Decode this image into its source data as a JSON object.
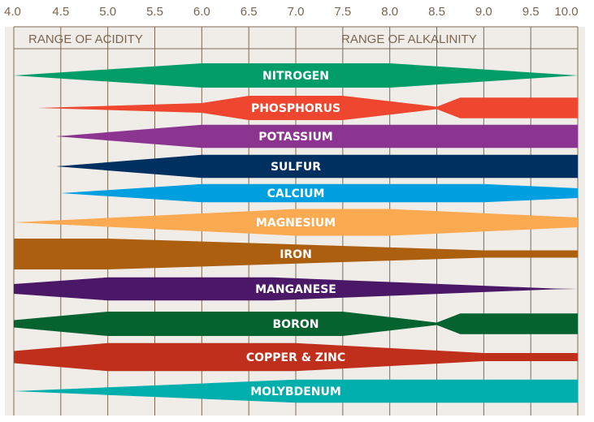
{
  "chart_data": {
    "type": "area",
    "x_ticks": [
      "4.0",
      "4.5",
      "5.0",
      "5.5",
      "6.0",
      "6.5",
      "7.0",
      "7.5",
      "8.0",
      "8.5",
      "9.0",
      "9.5",
      "10.0"
    ],
    "xlim": [
      4.0,
      10.0
    ],
    "grid": true,
    "range_labels": {
      "acidity": "RANGE OF ACIDITY",
      "alkalinity": "RANGE OF ALKALINITY"
    },
    "background_color": "#f0ede9",
    "grid_color": "#7d6a55",
    "bands": [
      {
        "name": "NITROGEN",
        "color": "#009d68",
        "profile": [
          [
            4.0,
            0
          ],
          [
            6.0,
            1
          ],
          [
            8.0,
            1
          ],
          [
            10.0,
            0
          ]
        ]
      },
      {
        "name": "PHOSPHORUS",
        "color": "#ef4630",
        "profile": [
          [
            4.25,
            0
          ],
          [
            6.0,
            0.4
          ],
          [
            6.5,
            1
          ],
          [
            7.5,
            1
          ],
          [
            8.5,
            0.1
          ],
          [
            8.75,
            0.85
          ],
          [
            10.0,
            0.85
          ]
        ]
      },
      {
        "name": "POTASSIUM",
        "color": "#8b3591",
        "profile": [
          [
            4.45,
            0
          ],
          [
            6.0,
            0.95
          ],
          [
            10.0,
            0.95
          ]
        ]
      },
      {
        "name": "SULFUR",
        "color": "#00305f",
        "profile": [
          [
            4.45,
            0
          ],
          [
            6.0,
            0.95
          ],
          [
            10.0,
            0.95
          ]
        ]
      },
      {
        "name": "CALCIUM",
        "color": "#00a0e0",
        "profile": [
          [
            4.5,
            0
          ],
          [
            6.0,
            0.75
          ],
          [
            9.0,
            0.75
          ],
          [
            10.0,
            0.4
          ]
        ]
      },
      {
        "name": "MAGNESIUM",
        "color": "#fbaa52",
        "profile": [
          [
            4.0,
            0
          ],
          [
            7.0,
            1.1
          ],
          [
            8.0,
            1.1
          ],
          [
            10.0,
            0.4
          ]
        ]
      },
      {
        "name": "IRON",
        "color": "#ad5f10",
        "profile": [
          [
            4.0,
            1.27
          ],
          [
            5.0,
            1.27
          ],
          [
            9.0,
            0.3
          ],
          [
            10.0,
            0.3
          ]
        ]
      },
      {
        "name": "MANGANESE",
        "color": "#4b1868",
        "profile": [
          [
            4.0,
            0.4
          ],
          [
            5.0,
            0.95
          ],
          [
            6.75,
            0.95
          ],
          [
            9.75,
            0.03
          ],
          [
            10.0,
            0
          ]
        ]
      },
      {
        "name": "BORON",
        "color": "#056330",
        "profile": [
          [
            4.0,
            0.3
          ],
          [
            5.0,
            1
          ],
          [
            7.5,
            1
          ],
          [
            8.5,
            0.1
          ],
          [
            8.75,
            0.85
          ],
          [
            10.0,
            0.85
          ]
        ]
      },
      {
        "name": "COPPER & ZINC",
        "color": "#bf2f1b",
        "profile": [
          [
            4.0,
            0.5
          ],
          [
            5.0,
            1.15
          ],
          [
            7.0,
            1.15
          ],
          [
            9.0,
            0.33
          ],
          [
            10.0,
            0.33
          ]
        ]
      },
      {
        "name": "MOLYBDENUM",
        "color": "#00aeac",
        "profile": [
          [
            4.0,
            0
          ],
          [
            7.0,
            0.95
          ],
          [
            10.0,
            0.95
          ]
        ]
      }
    ]
  }
}
